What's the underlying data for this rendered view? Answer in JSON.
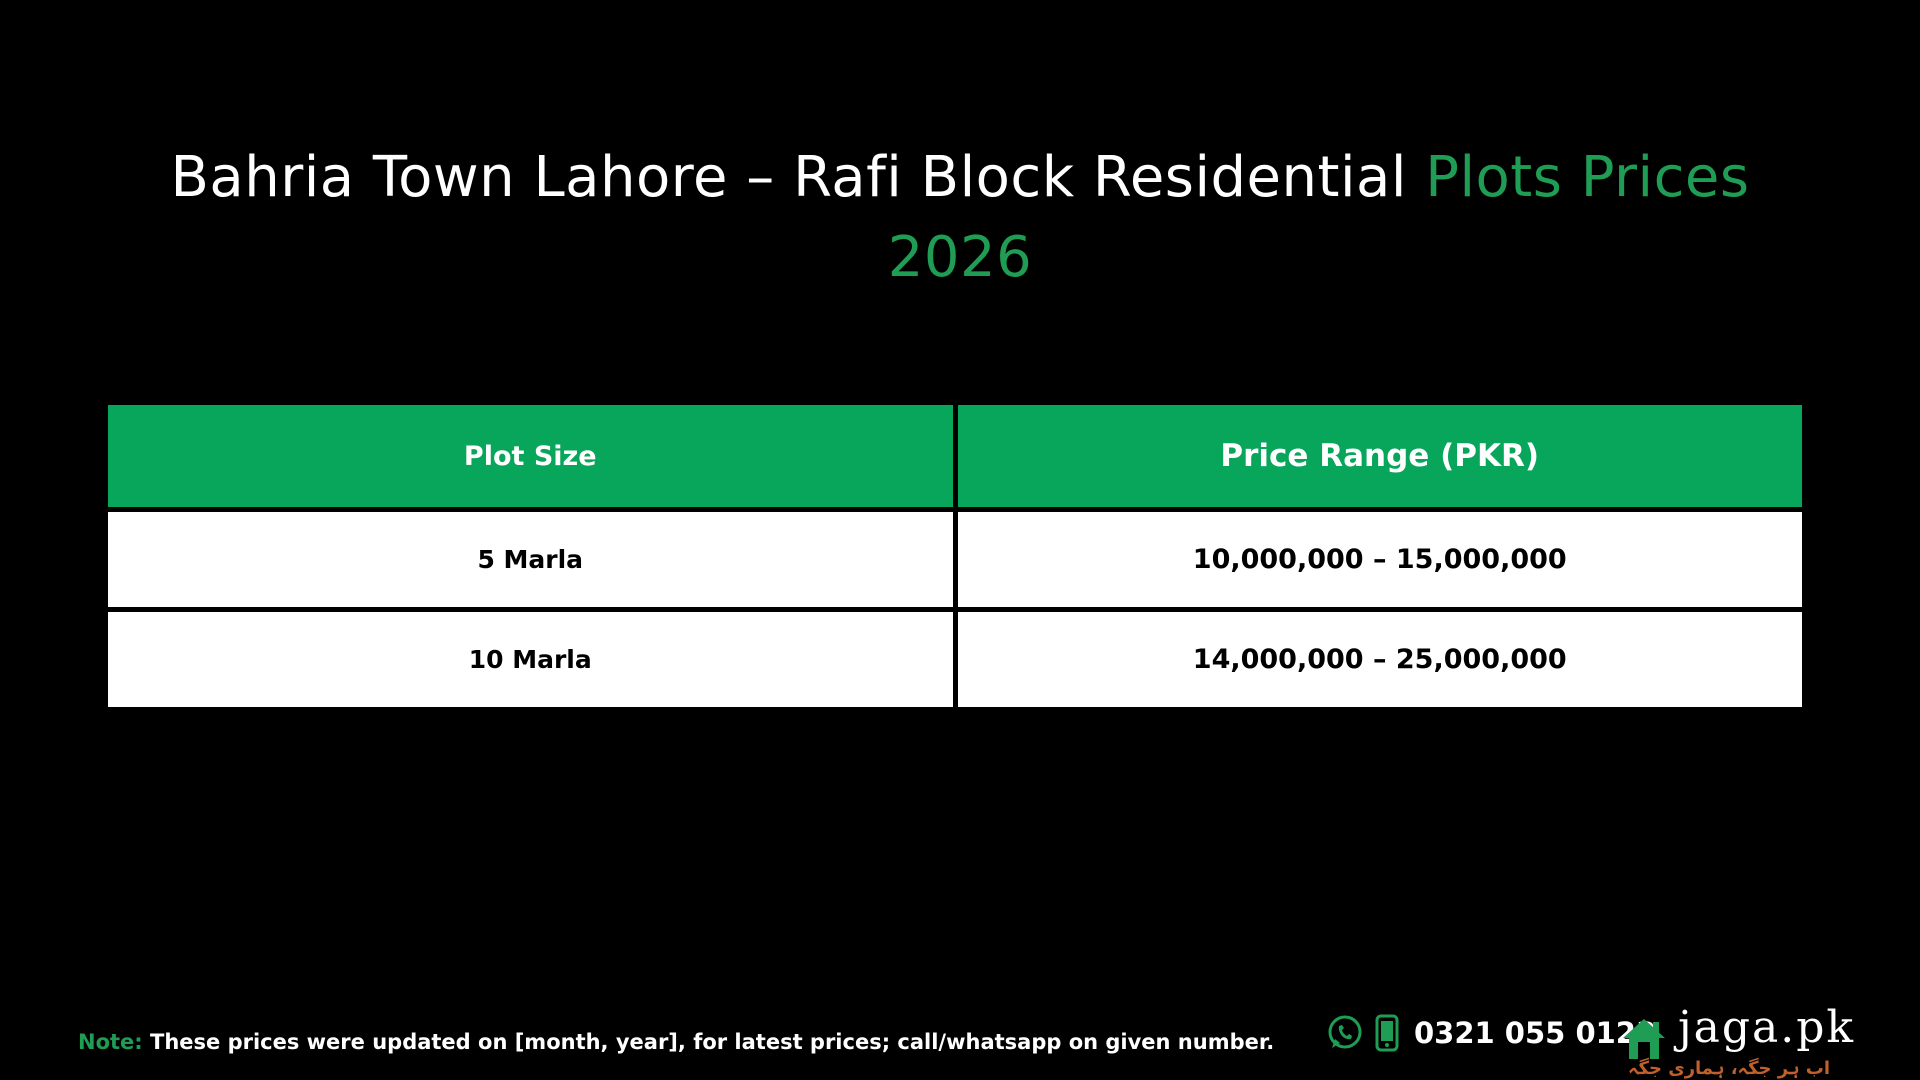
{
  "title": {
    "main": "Bahria Town Lahore – Rafi Block Residential ",
    "accent": "Plots Prices 2026",
    "accent_color": "#1f9d55"
  },
  "table": {
    "headers": {
      "plot_size": "Plot Size",
      "price_range": "Price Range (PKR)"
    },
    "rows": [
      {
        "plot_size": "5 Marla",
        "price_range": "10,000,000 – 15,000,000"
      },
      {
        "plot_size": "10 Marla",
        "price_range": "14,000,000 – 25,000,000"
      }
    ],
    "header_color": "#07a65a"
  },
  "footer": {
    "note_label": "Note:",
    "note_text": " These prices were updated on [month, year], for latest prices; call/whatsapp on given number.",
    "phone": "0321 055 0123",
    "icons": [
      "whatsapp-icon",
      "mobile-phone-icon",
      "house-logo-icon"
    ]
  },
  "brand": {
    "name": "jaga.pk",
    "tagline": "اب ہر جگہ، ہماری جگہ",
    "tagline_color": "#c0602a"
  }
}
